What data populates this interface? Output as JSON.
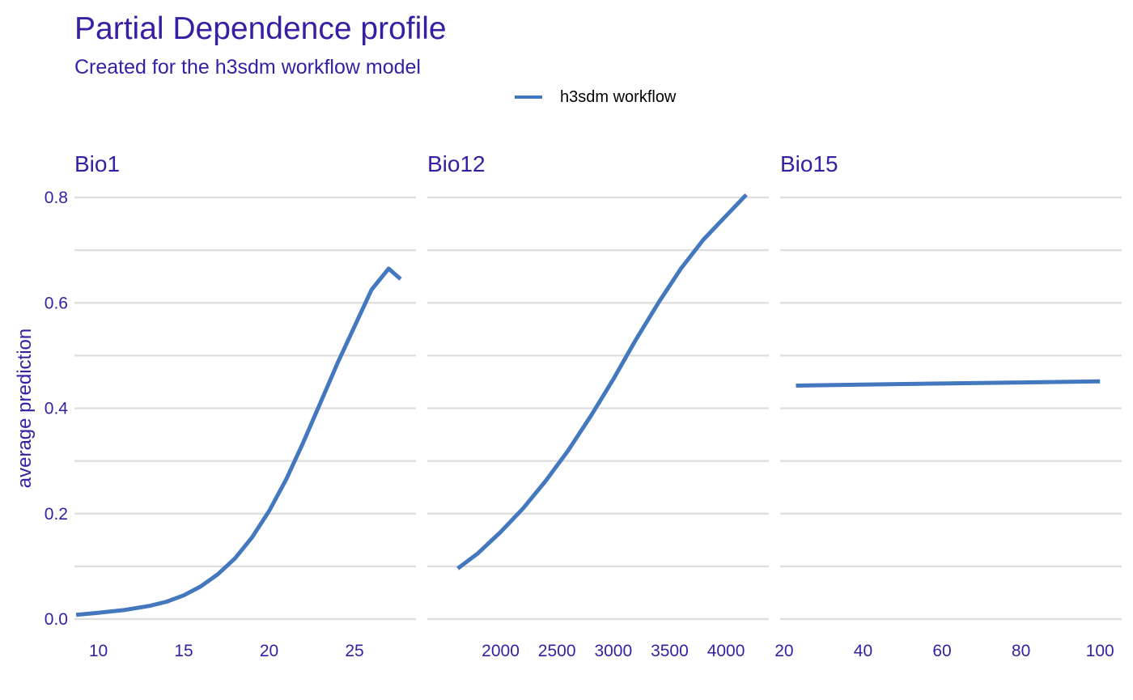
{
  "colors": {
    "text": "#371ea3",
    "grid": "#dedede",
    "series": "#4378bf",
    "legend_text": "#000000",
    "background": "#ffffff"
  },
  "chart_data": {
    "type": "line",
    "title": "Partial Dependence profile",
    "subtitle": "Created for the h3sdm workflow model",
    "ylabel": "average prediction",
    "xlabel": "",
    "ylim": [
      0,
      0.8
    ],
    "y_ticks": [
      0.0,
      0.2,
      0.4,
      0.6,
      0.8
    ],
    "y_tick_labels": [
      "0.0",
      "0.2",
      "0.4",
      "0.6",
      "0.8"
    ],
    "grid": true,
    "legend": {
      "position": "top",
      "entries": [
        "h3sdm workflow"
      ]
    },
    "series_name": "h3sdm workflow",
    "panels": [
      {
        "title": "Bio1",
        "xlim": [
          8.6,
          28.6
        ],
        "x_ticks": [
          10,
          15,
          20,
          25
        ],
        "x_tick_labels": [
          "10",
          "15",
          "20",
          "25"
        ],
        "x": [
          8.7,
          10,
          11.5,
          13,
          14,
          15,
          16,
          17,
          18,
          19,
          20,
          21,
          22,
          23,
          24,
          25,
          26,
          27,
          27.7
        ],
        "y": [
          0.008,
          0.012,
          0.017,
          0.025,
          0.033,
          0.045,
          0.062,
          0.085,
          0.115,
          0.155,
          0.205,
          0.265,
          0.335,
          0.41,
          0.485,
          0.555,
          0.625,
          0.665,
          0.645
        ]
      },
      {
        "title": "Bio12",
        "xlim": [
          1350,
          4380
        ],
        "x_ticks": [
          2000,
          2500,
          3000,
          3500,
          4000
        ],
        "x_tick_labels": [
          "2000",
          "2500",
          "3000",
          "3500",
          "4000"
        ],
        "x": [
          1620,
          1800,
          2000,
          2200,
          2400,
          2600,
          2800,
          3000,
          3200,
          3400,
          3600,
          3800,
          4000,
          4180
        ],
        "y": [
          0.096,
          0.125,
          0.165,
          0.21,
          0.262,
          0.32,
          0.385,
          0.455,
          0.53,
          0.6,
          0.665,
          0.72,
          0.765,
          0.805
        ]
      },
      {
        "title": "Bio15",
        "xlim": [
          19,
          105.5
        ],
        "x_ticks": [
          20,
          40,
          60,
          80,
          100
        ],
        "x_tick_labels": [
          "20",
          "40",
          "60",
          "80",
          "100"
        ],
        "x": [
          23,
          40,
          60,
          80,
          100
        ],
        "y": [
          0.443,
          0.445,
          0.447,
          0.449,
          0.451
        ]
      }
    ]
  }
}
